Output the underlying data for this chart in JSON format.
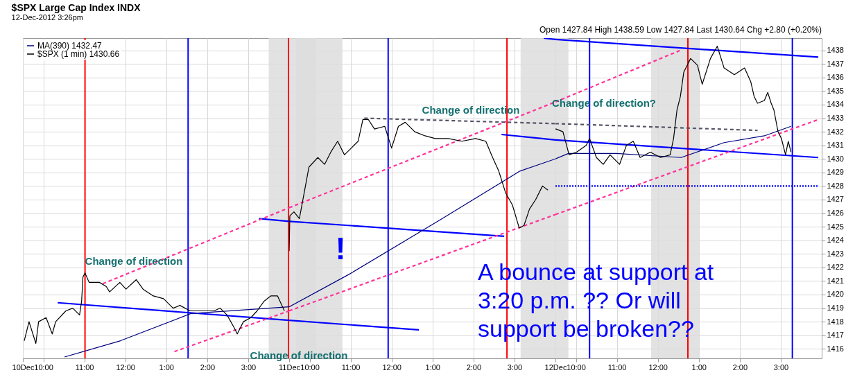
{
  "chart_data": [
    {
      "type": "line",
      "title": "$SPX Large Cap Index INDX",
      "subtitle": "12-Dec-2012 3:26pm",
      "xlim": [
        "2012-12-10T09:30",
        "2012-12-10T16:00"
      ],
      "xticks": [
        {
          "value": "2012-12-10T09:30",
          "label": "10Dec"
        },
        {
          "value": "2012-12-10T10:00",
          "label": "10:00"
        },
        {
          "value": "2012-12-10T11:00",
          "label": "11:00"
        },
        {
          "value": "2012-12-10T12:00",
          "label": "12:00"
        },
        {
          "value": "2012-12-10T13:00",
          "label": "1:00"
        },
        {
          "value": "2012-12-10T14:00",
          "label": "2:00"
        },
        {
          "value": "2012-12-10T15:00",
          "label": "3:00"
        }
      ],
      "ylim": [
        1415.3,
        1438.9
      ],
      "yticks": [
        1416,
        1417,
        1418,
        1419,
        1420,
        1421,
        1422,
        1423,
        1424,
        1425,
        1426,
        1427,
        1428,
        1429,
        1430,
        1431,
        1432,
        1433,
        1434,
        1435,
        1436,
        1437,
        1438
      ],
      "tick_labels": "x",
      "grid": true,
      "legend": "top left",
      "series": [
        {
          "color": "#0000ff",
          "line_style": "solid",
          "x": [
            "2012-12-10T10:21",
            "2012-12-10T16:00"
          ],
          "values": [
            1419.4,
            1418.1
          ]
        },
        {
          "color": "#0000ff",
          "line_style": "solid",
          "x": [
            "2012-12-10T15:16",
            "2012-12-10T16:00"
          ],
          "values": [
            1425.6,
            1425.4
          ]
        },
        {
          "color": "#ff3399",
          "line_style": "dashed",
          "x": [
            "2012-12-10T13:12",
            "2012-12-10T16:00"
          ],
          "values": [
            1415.8,
            1418.8
          ]
        },
        {
          "color": "#ff3399",
          "line_style": "dashed",
          "x": [
            "2012-12-10T11:27",
            "2012-12-10T16:00"
          ],
          "values": [
            1420.8,
            1426.4
          ]
        },
        {
          "name": "MA(390) 1432.47",
          "color": "#000080",
          "line_style": "solid",
          "x": [
            "2012-12-10T10:31",
            "2012-12-10T11:53",
            "2012-12-10T13:36",
            "2012-12-10T16:00"
          ],
          "values": [
            1415.4,
            1416.6,
            1418.6,
            1419.1
          ]
        },
        {
          "name": "$SPX (1 min) 1430.66",
          "color": "#000000",
          "line_style": "solid",
          "x": [
            "2012-12-10T09:32",
            "2012-12-10T09:39",
            "2012-12-10T09:49",
            "2012-12-10T09:53",
            "2012-12-10T10:04",
            "2012-12-10T10:13",
            "2012-12-10T10:18",
            "2012-12-10T10:33",
            "2012-12-10T10:43",
            "2012-12-10T10:53",
            "2012-12-10T10:56",
            "2012-12-10T10:58",
            "2012-12-10T11:01",
            "2012-12-10T11:07",
            "2012-12-10T11:22",
            "2012-12-10T11:32",
            "2012-12-10T11:37",
            "2012-12-10T11:52",
            "2012-12-10T12:01",
            "2012-12-10T12:16",
            "2012-12-10T12:26",
            "2012-12-10T12:41",
            "2012-12-10T12:56",
            "2012-12-10T13:10",
            "2012-12-10T13:20",
            "2012-12-10T13:35",
            "2012-12-10T13:50",
            "2012-12-10T14:10",
            "2012-12-10T14:19",
            "2012-12-10T14:29",
            "2012-12-10T14:39",
            "2012-12-10T14:44",
            "2012-12-10T14:53",
            "2012-12-10T15:04",
            "2012-12-10T15:13",
            "2012-12-10T15:23",
            "2012-12-10T15:33",
            "2012-12-10T15:43",
            "2012-12-10T15:53"
          ],
          "values": [
            1416.6,
            1418.0,
            1416.4,
            1418.0,
            1418.3,
            1417.1,
            1418.0,
            1418.8,
            1419.0,
            1418.5,
            1419.5,
            1421.3,
            1421.6,
            1420.9,
            1420.9,
            1420.6,
            1420.2,
            1420.9,
            1420.4,
            1421.1,
            1420.4,
            1419.9,
            1419.7,
            1419.0,
            1419.2,
            1418.8,
            1418.8,
            1418.8,
            1419.0,
            1418.5,
            1417.6,
            1417.1,
            1418.0,
            1418.3,
            1418.8,
            1419.5,
            1419.9,
            1419.9,
            1418.8
          ]
        }
      ],
      "ref_lines": [
        {
          "axis": "x",
          "value": "2012-12-10T11:01",
          "color": "#ff0000"
        },
        {
          "axis": "x",
          "value": "2012-12-10T13:32",
          "color": "#0000ff"
        },
        {
          "axis": "x",
          "value": "2012-12-10T15:59",
          "color": "#ff0000"
        }
      ],
      "bands": [
        {
          "axis": "x",
          "from": "2012-12-10T15:30",
          "to": "2012-12-10T16:00",
          "color": "#dddddd"
        }
      ],
      "annotations": [
        "Change of direction"
      ]
    },
    {
      "type": "line",
      "xlim": [
        "2012-12-11T09:30",
        "2012-12-11T16:00"
      ],
      "xticks": [
        {
          "value": "2012-12-11T09:30",
          "label": "11Dec"
        },
        {
          "value": "2012-12-11T10:00",
          "label": "10:00"
        },
        {
          "value": "2012-12-11T11:00",
          "label": "11:00"
        },
        {
          "value": "2012-12-11T12:00",
          "label": "12:00"
        },
        {
          "value": "2012-12-11T13:00",
          "label": "1:00"
        },
        {
          "value": "2012-12-11T14:00",
          "label": "2:00"
        },
        {
          "value": "2012-12-11T15:00",
          "label": "3:00"
        }
      ],
      "ylim": [
        1415.3,
        1438.9
      ],
      "yticks": [
        1416,
        1417,
        1418,
        1419,
        1420,
        1421,
        1422,
        1423,
        1424,
        1425,
        1426,
        1427,
        1428,
        1429,
        1430,
        1431,
        1432,
        1433,
        1434,
        1435,
        1436,
        1437,
        1438
      ],
      "tick_labels": "x",
      "grid": true,
      "series": [
        {
          "color": "#0000ff",
          "line_style": "solid",
          "x": [
            "2012-12-11T09:30",
            "2012-12-11T12:40"
          ],
          "values": [
            1418.1,
            1417.4
          ]
        },
        {
          "color": "#0000ff",
          "line_style": "solid",
          "x": [
            "2012-12-11T09:30",
            "2012-12-11T14:45"
          ],
          "values": [
            1425.4,
            1424.3
          ]
        },
        {
          "color": "#0000ff",
          "line_style": "solid",
          "x": [
            "2012-12-11T14:41",
            "2012-12-11T16:00"
          ],
          "values": [
            1431.8,
            1431.4
          ]
        },
        {
          "color": "#0000ff",
          "line_style": "solid",
          "x": [
            "2012-12-11T15:43",
            "2012-12-11T16:00"
          ],
          "values": [
            1438.9,
            1438.8
          ]
        },
        {
          "color": "#ff3399",
          "line_style": "dashed",
          "x": [
            "2012-12-11T09:30",
            "2012-12-11T16:00"
          ],
          "values": [
            1418.8,
            1425.9
          ]
        },
        {
          "color": "#ff3399",
          "line_style": "dashed",
          "x": [
            "2012-12-11T09:30",
            "2012-12-11T16:00"
          ],
          "values": [
            1426.4,
            1434.2
          ]
        },
        {
          "color": "#555566",
          "line_style": "dashed",
          "x": [
            "2012-12-11T11:20",
            "2012-12-11T16:00"
          ],
          "values": [
            1433.0,
            1432.6
          ]
        },
        {
          "color": "#000080",
          "line_style": "solid",
          "x": [
            "2012-12-11T09:30",
            "2012-12-11T10:58",
            "2012-12-11T13:11",
            "2012-12-11T15:08",
            "2012-12-11T16:00"
          ],
          "values": [
            1419.1,
            1421.5,
            1425.5,
            1429.1,
            1430.0
          ]
        },
        {
          "color": "#000000",
          "line_style": "solid",
          "x": [
            "2012-12-11T09:30",
            "2012-12-11T09:31",
            "2012-12-11T09:37",
            "2012-12-11T09:45",
            "2012-12-11T09:52",
            "2012-12-11T09:59",
            "2012-12-11T10:12",
            "2012-12-11T10:22",
            "2012-12-11T10:31",
            "2012-12-11T10:41",
            "2012-12-11T10:51",
            "2012-12-11T11:01",
            "2012-12-11T11:11",
            "2012-12-11T11:18",
            "2012-12-11T11:26",
            "2012-12-11T11:35",
            "2012-12-11T11:50",
            "2012-12-11T12:00",
            "2012-12-11T12:10",
            "2012-12-11T12:20",
            "2012-12-11T12:34",
            "2012-12-11T12:49",
            "2012-12-11T13:04",
            "2012-12-11T13:23",
            "2012-12-11T13:43",
            "2012-12-11T14:03",
            "2012-12-11T14:18",
            "2012-12-11T14:28",
            "2012-12-11T14:37",
            "2012-12-11T14:47",
            "2012-12-11T14:57",
            "2012-12-11T15:07",
            "2012-12-11T15:14",
            "2012-12-11T15:22",
            "2012-12-11T15:31",
            "2012-12-11T15:41",
            "2012-12-11T15:49"
          ],
          "values": [
            1423.2,
            1425.8,
            1426.1,
            1425.6,
            1427.5,
            1429.4,
            1430.1,
            1429.6,
            1430.5,
            1431.3,
            1430.3,
            1430.8,
            1431.3,
            1432.9,
            1432.9,
            1432.2,
            1432.4,
            1430.8,
            1432.4,
            1432.7,
            1432.0,
            1431.7,
            1431.5,
            1431.5,
            1431.3,
            1431.5,
            1431.3,
            1430.1,
            1429.1,
            1427.5,
            1426.6,
            1424.9,
            1425.1,
            1426.3,
            1427.0,
            1428.0,
            1427.7
          ]
        }
      ],
      "ref_lines": [
        {
          "axis": "x",
          "value": "2012-12-11T11:55",
          "color": "#0000ff"
        },
        {
          "axis": "x",
          "value": "2012-12-11T14:49",
          "color": "#ff0000"
        }
      ],
      "bands": [
        {
          "axis": "x",
          "from": "2012-12-11T09:30",
          "to": "2012-12-11T10:10",
          "color": "#dddddd"
        },
        {
          "axis": "x",
          "from": "2012-12-11T09:40",
          "to": "2012-12-11T10:48",
          "color": "#dddddd"
        },
        {
          "axis": "x",
          "from": "2012-12-11T15:09",
          "to": "2012-12-11T16:00",
          "color": "#dddddd"
        }
      ],
      "annotations": [
        "Change of direction",
        "Change of direction",
        "!"
      ]
    },
    {
      "type": "line",
      "xlim": [
        "2012-12-12T09:30",
        "2012-12-12T16:00"
      ],
      "xticks": [
        {
          "value": "2012-12-12T09:30",
          "label": "12Dec"
        },
        {
          "value": "2012-12-12T10:00",
          "label": "10:00"
        },
        {
          "value": "2012-12-12T11:00",
          "label": "11:00"
        },
        {
          "value": "2012-12-12T12:00",
          "label": "12:00"
        },
        {
          "value": "2012-12-12T13:00",
          "label": "1:00"
        },
        {
          "value": "2012-12-12T14:00",
          "label": "2:00"
        },
        {
          "value": "2012-12-12T15:00",
          "label": "3:00"
        }
      ],
      "ylim": [
        1415.3,
        1438.9
      ],
      "yticks": [
        1416,
        1417,
        1418,
        1419,
        1420,
        1421,
        1422,
        1423,
        1424,
        1425,
        1426,
        1427,
        1428,
        1429,
        1430,
        1431,
        1432,
        1433,
        1434,
        1435,
        1436,
        1437,
        1438
      ],
      "grid": true,
      "series": [
        {
          "color": "#0000ff",
          "line_style": "solid",
          "x": [
            "2012-12-12T09:30",
            "2012-12-12T15:55"
          ],
          "values": [
            1431.4,
            1430.1
          ]
        },
        {
          "color": "#0000ff",
          "line_style": "solid",
          "x": [
            "2012-12-12T09:30",
            "2012-12-12T15:55"
          ],
          "values": [
            1438.8,
            1437.5
          ]
        },
        {
          "color": "#ff3399",
          "line_style": "dashed",
          "x": [
            "2012-12-12T09:30",
            "2012-12-12T15:55"
          ],
          "values": [
            1425.9,
            1432.9
          ]
        },
        {
          "color": "#ff3399",
          "line_style": "dashed",
          "x": [
            "2012-12-12T09:30",
            "2012-12-12T12:33"
          ],
          "values": [
            1434.2,
            1438.0
          ]
        },
        {
          "color": "#555566",
          "line_style": "dashed",
          "x": [
            "2012-12-12T09:30",
            "2012-12-12T14:26"
          ],
          "values": [
            1432.6,
            1432.1
          ]
        },
        {
          "color": "#0000ff",
          "line_style": "dotted",
          "x": [
            "2012-12-12T09:30",
            "2012-12-12T15:55"
          ],
          "values": [
            1428.0,
            1428.0
          ]
        },
        {
          "color": "#000080",
          "line_style": "solid",
          "x": [
            "2012-12-12T09:30",
            "2012-12-12T09:49",
            "2012-12-12T10:59",
            "2012-12-12T12:34",
            "2012-12-12T13:37",
            "2012-12-12T14:36",
            "2012-12-12T15:15"
          ],
          "values": [
            1430.0,
            1430.4,
            1430.4,
            1430.1,
            1431.2,
            1431.7,
            1432.4
          ]
        },
        {
          "color": "#000000",
          "line_style": "solid",
          "x": [
            "2012-12-12T09:30",
            "2012-12-12T09:31",
            "2012-12-12T09:41",
            "2012-12-12T09:50",
            "2012-12-12T10:01",
            "2012-12-12T10:15",
            "2012-12-12T10:20",
            "2012-12-12T10:30",
            "2012-12-12T10:40",
            "2012-12-12T10:50",
            "2012-12-12T11:04",
            "2012-12-12T11:14",
            "2012-12-12T11:24",
            "2012-12-12T11:34",
            "2012-12-12T11:49",
            "2012-12-12T12:04",
            "2012-12-12T12:18",
            "2012-12-12T12:23",
            "2012-12-12T12:28",
            "2012-12-12T12:33",
            "2012-12-12T12:38",
            "2012-12-12T12:48",
            "2012-12-12T12:58",
            "2012-12-12T13:05",
            "2012-12-12T13:17",
            "2012-12-12T13:27",
            "2012-12-12T13:37",
            "2012-12-12T13:52",
            "2012-12-12T14:07",
            "2012-12-12T14:16",
            "2012-12-12T14:21",
            "2012-12-12T14:26",
            "2012-12-12T14:36",
            "2012-12-12T14:41",
            "2012-12-12T14:46",
            "2012-12-12T14:50",
            "2012-12-12T14:56",
            "2012-12-12T15:01",
            "2012-12-12T15:07",
            "2012-12-12T15:11",
            "2012-12-12T15:15"
          ],
          "values": [
            1432.2,
            1432.2,
            1432.0,
            1430.3,
            1430.5,
            1431.0,
            1431.5,
            1430.1,
            1429.6,
            1430.3,
            1429.6,
            1431.0,
            1431.3,
            1430.1,
            1430.5,
            1430.1,
            1430.3,
            1431.5,
            1433.6,
            1434.6,
            1436.4,
            1437.4,
            1436.9,
            1435.5,
            1437.4,
            1438.3,
            1436.7,
            1436.2,
            1436.7,
            1435.7,
            1434.6,
            1434.1,
            1434.3,
            1434.9,
            1434.1,
            1433.6,
            1432.0,
            1431.5,
            1430.3,
            1431.3,
            1430.5
          ]
        }
      ],
      "ref_lines": [
        {
          "axis": "x",
          "value": "2012-12-12T10:20",
          "color": "#0000ff"
        },
        {
          "axis": "x",
          "value": "2012-12-12T12:44",
          "color": "#ff0000"
        },
        {
          "axis": "x",
          "value": "2012-12-12T15:17",
          "color": "#0000ff"
        }
      ],
      "bands": [
        {
          "axis": "x",
          "from": "2012-12-12T09:30",
          "to": "2012-12-12T09:49",
          "color": "#dddddd"
        },
        {
          "axis": "x",
          "from": "2012-12-12T11:50",
          "to": "2012-12-12T13:01",
          "color": "#dddddd"
        }
      ],
      "annotations": [
        "Open 1427.84  High 1438.59  Low 1427.84  Last 1430.64  Chg +2.80 (+0.20%)",
        "Change of direction?",
        "A bounce at support at\n3:20 p.m. ?? Or will\nsupport be broken??"
      ]
    }
  ]
}
